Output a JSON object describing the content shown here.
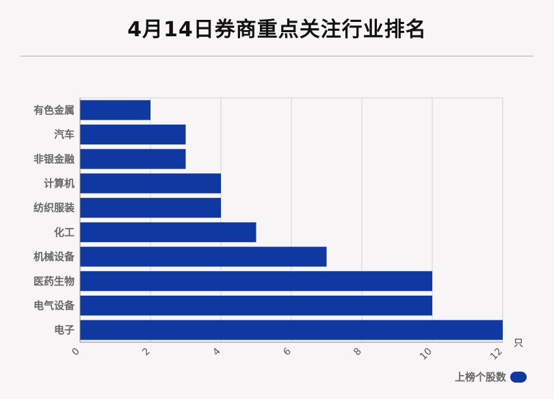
{
  "title": "4月14日券商重点关注行业排名",
  "colors": {
    "bar": "#0f38a0",
    "background": "#f8f5f6",
    "grid": "#d2d2d2",
    "category_text": "#666666",
    "tick_text": "#555555"
  },
  "chart_data": {
    "type": "bar",
    "orientation": "horizontal",
    "title": "4月14日券商重点关注行业排名",
    "categories": [
      "有色金属",
      "汽车",
      "非银金融",
      "计算机",
      "纺织服装",
      "化工",
      "机械设备",
      "医药生物",
      "电气设备",
      "电子"
    ],
    "series": [
      {
        "name": "上榜个股数",
        "values": [
          2,
          3,
          3,
          4,
          4,
          5,
          7,
          10,
          10,
          12
        ]
      }
    ],
    "xlim": [
      0,
      12
    ],
    "xticks": [
      "0",
      "2",
      "4",
      "6",
      "8",
      "10",
      "12"
    ],
    "xunit": "只",
    "grid": true,
    "legend_position": "bottom-right"
  },
  "legend": {
    "label": "上榜个股数"
  }
}
